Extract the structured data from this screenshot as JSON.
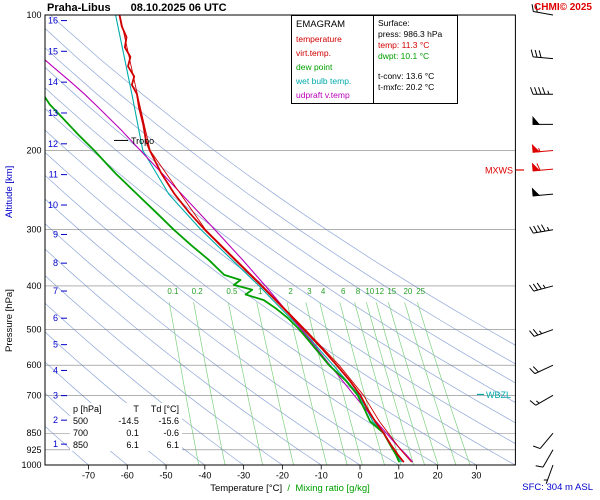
{
  "header": {
    "station": "Praha-Libus",
    "datetime": "08.10.2025 06 UTC",
    "copyright": "CHMI© 2025"
  },
  "legend": {
    "title": "EMAGRAM",
    "items": [
      {
        "label": "temperature",
        "color": "#d00000"
      },
      {
        "label": "virt.temp.",
        "color": "#d00000"
      },
      {
        "label": "dew point",
        "color": "#00a000"
      },
      {
        "label": "wet bulb temp.",
        "color": "#00aaaa"
      },
      {
        "label": "udpraft v.temp",
        "color": "#bb00bb"
      }
    ]
  },
  "surface_box": {
    "title": "Surface:",
    "lines": [
      {
        "text": "press: 986.3 hPa",
        "color": "#000000"
      },
      {
        "text": "temp: 11.3 °C",
        "color": "#d00000"
      },
      {
        "text": "dwpt: 10.1 °C",
        "color": "#00a000"
      },
      {
        "text": "t-conv: 13.6 °C",
        "color": "#000000"
      },
      {
        "text": "t-mxfc: 20.2 °C",
        "color": "#000000"
      }
    ]
  },
  "table": {
    "headers": [
      "p [hPa]",
      "T",
      "Td [°C]"
    ],
    "rows": [
      [
        "500",
        "-14.5",
        "-15.6"
      ],
      [
        "700",
        "0.1",
        "-0.6"
      ],
      [
        "850",
        "6.1",
        "6.1"
      ]
    ]
  },
  "axes": {
    "pressure_label": "Pressure [hPa]",
    "altitude_label": "Altitude [km]",
    "temp_label": "Temperature [°C]",
    "mix_sep": "/",
    "mix_label": "Mixing ratio [g/kg]",
    "pressure_ticks": [
      100,
      200,
      300,
      400,
      500,
      600,
      700,
      850,
      925,
      1000
    ],
    "altitude_ticks_km": [
      1,
      2,
      3,
      4,
      5,
      6,
      7,
      8,
      9,
      10,
      11,
      12,
      13,
      14,
      15,
      16
    ],
    "temp_ticks_c": [
      -70,
      -60,
      -50,
      -40,
      -30,
      -20,
      -10,
      0,
      10,
      20,
      30
    ]
  },
  "annotations": {
    "tropo": "Tropo",
    "mxws": "MXWS",
    "wbzl": "WBZL",
    "sfc": "SFC: 304 m ASL"
  },
  "colors": {
    "temperature": "#d00000",
    "virt_temp": "#d00000",
    "dew_point": "#00a000",
    "wet_bulb": "#00aaaa",
    "updraft": "#bb00bb",
    "adiabat": "#8fa8d8",
    "mixing": "#7ed07e",
    "mixing_label": "#2aa02a",
    "grid": "#808080",
    "altitude": "#0000cc",
    "red": "#dd0000"
  },
  "chart_data": {
    "type": "line",
    "title": "Praha-Libus 08.10.2025 06 UTC emagram sounding",
    "x_axis": {
      "label": "Temperature [°C]",
      "range": [
        -70,
        30
      ],
      "ticks": [
        -70,
        -60,
        -50,
        -40,
        -30,
        -20,
        -10,
        0,
        10,
        20,
        30
      ]
    },
    "y_axis": {
      "label": "Pressure [hPa]",
      "scale": "log",
      "range": [
        1000,
        100
      ],
      "ticks": [
        100,
        200,
        300,
        400,
        500,
        600,
        700,
        850,
        925,
        1000
      ]
    },
    "mixing_ratio_lines_gkg": [
      0.1,
      0.2,
      0.5,
      1,
      2,
      3,
      4,
      6,
      8,
      10,
      12,
      15,
      20,
      25
    ],
    "dry_adiabats_theta_c": {
      "start": -70,
      "end": 100,
      "step": 10
    },
    "markers": {
      "tropopause_hpa": 190,
      "mxws_hpa": 221,
      "wbzl_hpa": 697,
      "surface_press_hpa": 986.3,
      "surface_temp_c": 11.3,
      "surface_dwpt_c": 10.1,
      "t_conv_c": 13.6,
      "t_mxfc_c": 20.2
    },
    "series": [
      {
        "name": "wet_bulb",
        "color": "#00aaaa",
        "width": 1.1,
        "points": [
          [
            986,
            10.7
          ],
          [
            925,
            8.6
          ],
          [
            850,
            6.1
          ],
          [
            800,
            3.3
          ],
          [
            700,
            -0.2
          ],
          [
            600,
            -6.9
          ],
          [
            500,
            -15.0
          ],
          [
            450,
            -20.3
          ],
          [
            400,
            -26.0
          ],
          [
            350,
            -33.0
          ],
          [
            300,
            -41.0
          ],
          [
            250,
            -49.3
          ],
          [
            200,
            -56.0
          ],
          [
            150,
            -58.8
          ],
          [
            100,
            -63.0
          ]
        ]
      },
      {
        "name": "updraft_virt_temp",
        "color": "#bb00bb",
        "width": 1.1,
        "points": [
          [
            986,
            13.6
          ],
          [
            950,
            12.0
          ],
          [
            900,
            9.3
          ],
          [
            850,
            6.8
          ],
          [
            800,
            4.1
          ],
          [
            750,
            1.4
          ],
          [
            700,
            -1.5
          ],
          [
            650,
            -4.5
          ],
          [
            600,
            -7.7
          ],
          [
            550,
            -11.2
          ],
          [
            500,
            -15.1
          ],
          [
            450,
            -19.4
          ],
          [
            400,
            -24.4
          ],
          [
            350,
            -30.3
          ],
          [
            300,
            -37.4
          ],
          [
            250,
            -46.0
          ],
          [
            225,
            -51.0
          ],
          [
            200,
            -56.6
          ],
          [
            180,
            -61.6
          ],
          [
            160,
            -67.6
          ],
          [
            150,
            -71.0
          ],
          [
            140,
            -74.9
          ],
          [
            130,
            -79.3
          ],
          [
            125,
            -81.6
          ]
        ]
      },
      {
        "name": "virt_temp",
        "color": "#d00000",
        "width": 0.9,
        "points": [
          [
            986,
            13.3
          ],
          [
            925,
            10.5
          ],
          [
            850,
            7.3
          ],
          [
            800,
            5.0
          ],
          [
            700,
            0.9
          ],
          [
            600,
            -5.4
          ],
          [
            500,
            -14.1
          ],
          [
            400,
            -25.1
          ],
          [
            300,
            -39.8
          ],
          [
            200,
            -54.1
          ],
          [
            150,
            -57.4
          ],
          [
            100,
            -61.9
          ]
        ]
      },
      {
        "name": "dew_point",
        "color": "#00a000",
        "width": 1.8,
        "points": [
          [
            986,
            10.1
          ],
          [
            950,
            9.3
          ],
          [
            925,
            8.5
          ],
          [
            900,
            7.7
          ],
          [
            850,
            6.1
          ],
          [
            800,
            2.6
          ],
          [
            750,
            1.1
          ],
          [
            700,
            -0.6
          ],
          [
            650,
            -3.6
          ],
          [
            600,
            -8.0
          ],
          [
            550,
            -11.6
          ],
          [
            500,
            -15.6
          ],
          [
            470,
            -18.8
          ],
          [
            450,
            -21.5
          ],
          [
            430,
            -24.8
          ],
          [
            418,
            -29.5
          ],
          [
            408,
            -27.8
          ],
          [
            398,
            -32.5
          ],
          [
            388,
            -30.8
          ],
          [
            378,
            -35.0
          ],
          [
            350,
            -39.0
          ],
          [
            325,
            -43.5
          ],
          [
            300,
            -48.0
          ],
          [
            275,
            -52.5
          ],
          [
            250,
            -57.5
          ],
          [
            225,
            -63.0
          ],
          [
            200,
            -68.5
          ],
          [
            185,
            -72.5
          ],
          [
            170,
            -76.5
          ],
          [
            158,
            -80.0
          ],
          [
            151,
            -81.5
          ]
        ]
      },
      {
        "name": "temperature",
        "color": "#d00000",
        "width": 1.8,
        "points": [
          [
            986,
            11.3
          ],
          [
            950,
            9.8
          ],
          [
            925,
            8.9
          ],
          [
            900,
            7.9
          ],
          [
            850,
            6.1
          ],
          [
            800,
            3.9
          ],
          [
            750,
            1.9
          ],
          [
            700,
            0.1
          ],
          [
            650,
            -2.6
          ],
          [
            600,
            -6.0
          ],
          [
            550,
            -9.9
          ],
          [
            500,
            -14.5
          ],
          [
            450,
            -19.6
          ],
          [
            400,
            -25.4
          ],
          [
            350,
            -32.2
          ],
          [
            300,
            -40.0
          ],
          [
            275,
            -44.0
          ],
          [
            250,
            -47.8
          ],
          [
            225,
            -51.2
          ],
          [
            200,
            -54.2
          ],
          [
            190,
            -55.2
          ],
          [
            175,
            -55.9
          ],
          [
            160,
            -57.0
          ],
          [
            150,
            -57.5
          ],
          [
            143,
            -58.8
          ],
          [
            137,
            -58.2
          ],
          [
            130,
            -59.8
          ],
          [
            124,
            -59.2
          ],
          [
            118,
            -60.6
          ],
          [
            112,
            -60.2
          ],
          [
            106,
            -61.4
          ],
          [
            100,
            -62.0
          ]
        ]
      }
    ],
    "wind_barbs": [
      {
        "p": 1000,
        "speed_kt": 5,
        "dir_deg": 200,
        "color": "#000000"
      },
      {
        "p": 925,
        "speed_kt": 10,
        "dir_deg": 210,
        "color": "#000000"
      },
      {
        "p": 850,
        "speed_kt": 10,
        "dir_deg": 220,
        "color": "#000000"
      },
      {
        "p": 700,
        "speed_kt": 15,
        "dir_deg": 240,
        "color": "#000000"
      },
      {
        "p": 600,
        "speed_kt": 20,
        "dir_deg": 245,
        "color": "#000000"
      },
      {
        "p": 500,
        "speed_kt": 25,
        "dir_deg": 250,
        "color": "#000000"
      },
      {
        "p": 400,
        "speed_kt": 35,
        "dir_deg": 255,
        "color": "#000000"
      },
      {
        "p": 300,
        "speed_kt": 45,
        "dir_deg": 260,
        "color": "#000000"
      },
      {
        "p": 250,
        "speed_kt": 50,
        "dir_deg": 265,
        "color": "#000000"
      },
      {
        "p": 220,
        "speed_kt": 60,
        "dir_deg": 265,
        "color": "#dd0000"
      },
      {
        "p": 200,
        "speed_kt": 55,
        "dir_deg": 265,
        "color": "#dd0000"
      },
      {
        "p": 175,
        "speed_kt": 50,
        "dir_deg": 270,
        "color": "#000000"
      },
      {
        "p": 150,
        "speed_kt": 45,
        "dir_deg": 270,
        "color": "#000000"
      },
      {
        "p": 125,
        "speed_kt": 30,
        "dir_deg": 275,
        "color": "#000000"
      },
      {
        "p": 100,
        "speed_kt": 20,
        "dir_deg": 280,
        "color": "#000000"
      }
    ]
  }
}
